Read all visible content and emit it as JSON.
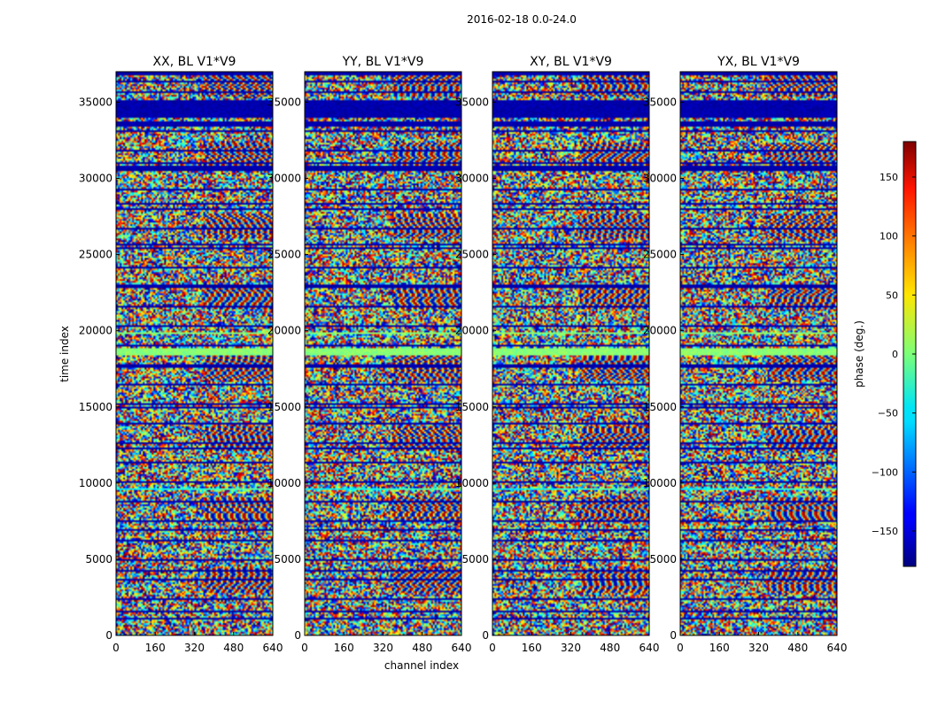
{
  "chart_data": {
    "type": "heatmap",
    "title": "2016-02-18 0.0-24.0",
    "xlabel": "channel index",
    "ylabel": "time index",
    "xlim": [
      0,
      640
    ],
    "ylim": [
      0,
      37000
    ],
    "x_ticks": [
      0,
      160,
      320,
      480,
      640
    ],
    "y_ticks": [
      0,
      5000,
      10000,
      15000,
      20000,
      25000,
      30000,
      35000
    ],
    "panels": [
      {
        "title": "XX, BL V1*V9"
      },
      {
        "title": "YY, BL V1*V9"
      },
      {
        "title": "XY, BL V1*V9"
      },
      {
        "title": "YX, BL V1*V9"
      }
    ],
    "colorbar": {
      "label": "phase (deg.)",
      "range": [
        -180,
        180
      ],
      "ticks": [
        -150,
        -100,
        -50,
        0,
        50,
        100,
        150
      ],
      "colormap": "jet"
    }
  }
}
